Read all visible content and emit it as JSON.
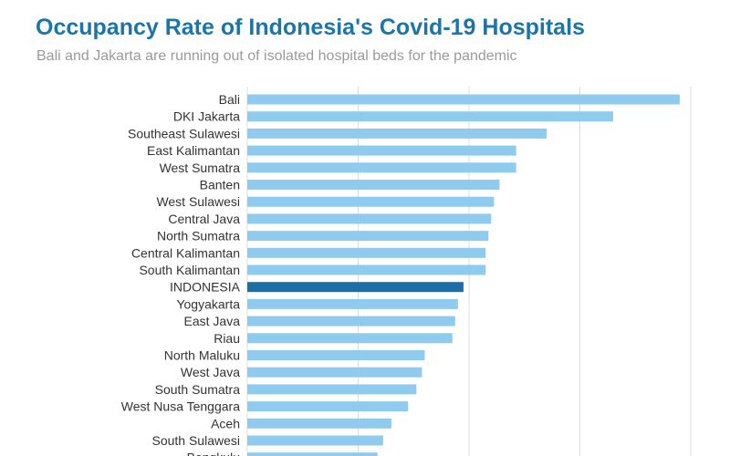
{
  "header": {
    "title": "Occupancy Rate of Indonesia's Covid-19 Hospitals",
    "subtitle": "Bali and Jakarta are running out of isolated hospital beds for the pandemic"
  },
  "colors": {
    "title": "#1c75a8",
    "bar": "#8fcbee",
    "highlight_bar": "#1a6fa6",
    "grid": "#dcdcdc"
  },
  "chart_data": {
    "type": "bar",
    "orientation": "horizontal",
    "title": "Occupancy Rate of Indonesia's Covid-19 Hospitals",
    "subtitle": "Bali and Jakarta are running out of isolated hospital beds for the pandemic",
    "xlabel": "",
    "ylabel": "",
    "xlim": [
      0,
      80
    ],
    "grid": true,
    "highlight": "INDONESIA",
    "categories": [
      "Bali",
      "DKI Jakarta",
      "Southeast Sulawesi",
      "East Kalimantan",
      "West Sumatra",
      "Banten",
      "West Sulawesi",
      "Central Java",
      "North Sumatra",
      "Central Kalimantan",
      "South Kalimantan",
      "INDONESIA",
      "Yogyakarta",
      "East Java",
      "Riau",
      "North Maluku",
      "West Java",
      "South Sumatra",
      "West Nusa Tenggara",
      "Aceh",
      "South Sulawesi",
      "Bengkulu"
    ],
    "values": [
      78,
      66,
      54,
      48.5,
      48.5,
      45.5,
      44.5,
      44,
      43.5,
      43,
      43,
      39,
      38,
      37.5,
      37,
      32,
      31.5,
      30.5,
      29,
      26,
      24.5,
      23.5
    ]
  }
}
